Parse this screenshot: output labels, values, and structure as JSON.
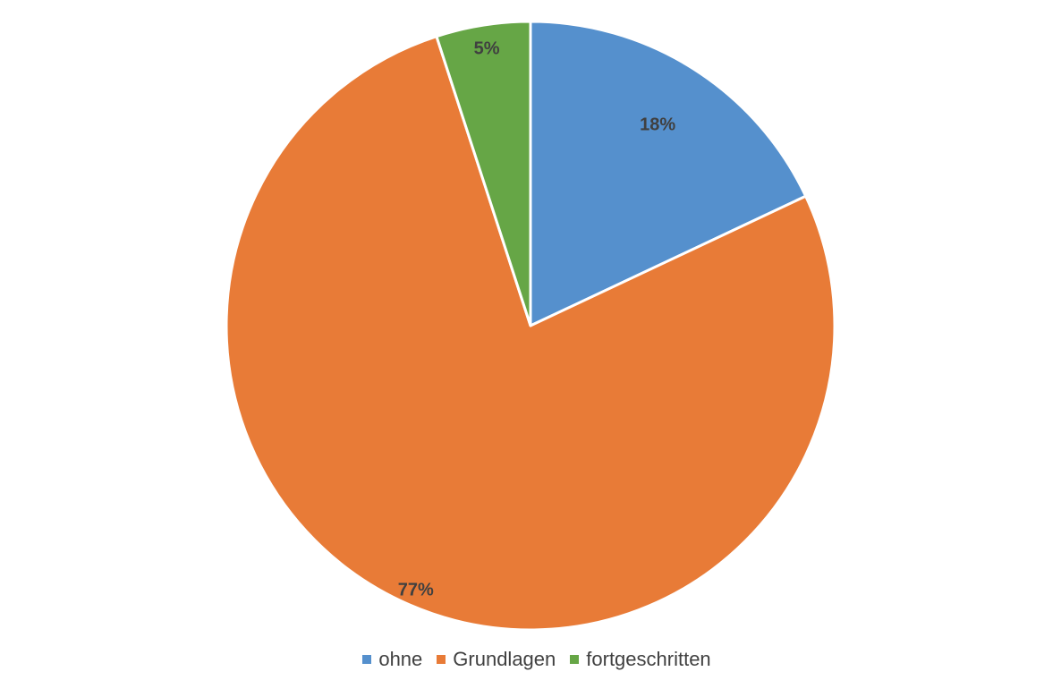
{
  "chart_data": {
    "type": "pie",
    "title": "",
    "categories": [
      "ohne",
      "Grundlagen",
      "fortgeschritten"
    ],
    "values": [
      18,
      77,
      5
    ],
    "value_labels": [
      "18%",
      "77%",
      "5%"
    ],
    "colors": [
      "#5590CD",
      "#E87B37",
      "#66A646"
    ],
    "start_angle_deg": 0,
    "direction": "clockwise",
    "legend_position": "bottom"
  }
}
